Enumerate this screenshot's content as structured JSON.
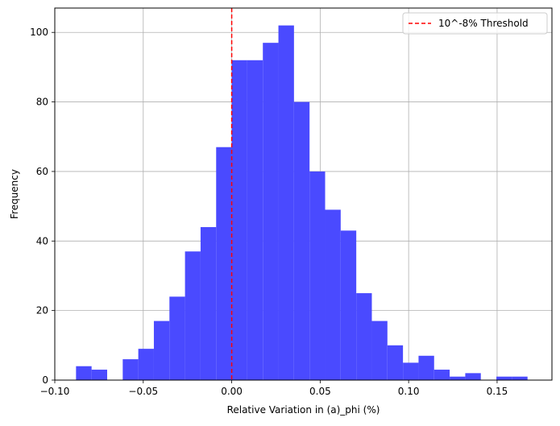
{
  "chart_data": {
    "type": "bar",
    "subtype": "histogram",
    "xlabel": "Relative Variation in (a)_phi (%)",
    "ylabel": "Frequency",
    "xlim": [
      -0.1,
      0.181
    ],
    "ylim": [
      0,
      107
    ],
    "xticks": [
      -0.1,
      -0.05,
      0.0,
      0.05,
      0.1,
      0.15
    ],
    "xtick_labels": [
      "−0.10",
      "−0.05",
      "0.00",
      "0.05",
      "0.10",
      "0.15"
    ],
    "yticks": [
      0,
      20,
      40,
      60,
      80,
      100
    ],
    "ytick_labels": [
      "0",
      "20",
      "40",
      "60",
      "80",
      "100"
    ],
    "grid": true,
    "bar_color": "#4a4aff",
    "bin_edges": [
      -0.088,
      -0.0792,
      -0.0704,
      -0.0616,
      -0.0528,
      -0.044,
      -0.0352,
      -0.0264,
      -0.0176,
      -0.0088,
      0.0,
      0.0088,
      0.0176,
      0.0264,
      0.0352,
      0.044,
      0.0528,
      0.0616,
      0.0704,
      0.0792,
      0.088,
      0.0968,
      0.1056,
      0.1144,
      0.1232,
      0.132,
      0.1408,
      0.1496,
      0.1584,
      0.1672
    ],
    "counts": [
      4,
      3,
      0,
      6,
      9,
      17,
      24,
      37,
      44,
      67,
      92,
      92,
      97,
      102,
      80,
      60,
      49,
      43,
      25,
      17,
      10,
      5,
      7,
      3,
      1,
      2,
      0,
      1,
      1
    ],
    "threshold": {
      "x": 0.0,
      "label": "10^-8% Threshold",
      "color": "#ff0000",
      "style": "dashed"
    },
    "legend_position": "top-right"
  }
}
